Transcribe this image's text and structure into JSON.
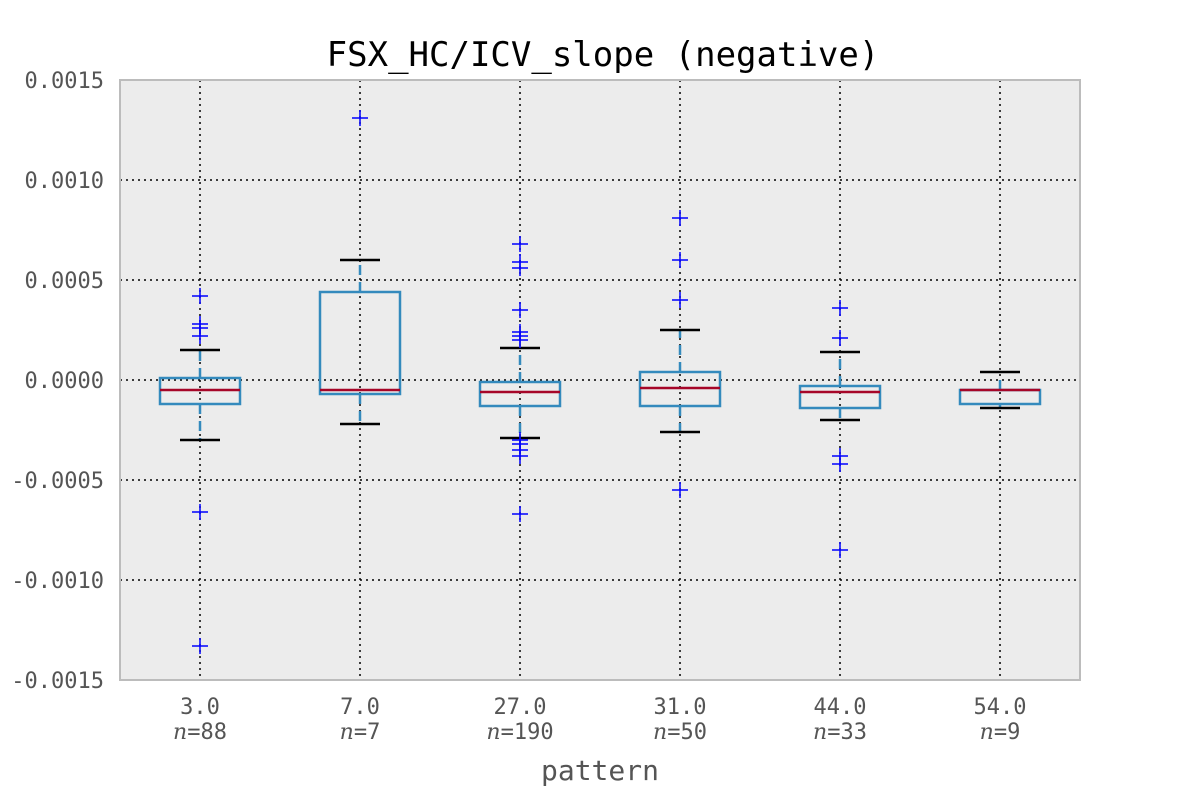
{
  "chart_data": {
    "type": "box",
    "title": "FSX_HC/ICV_slope (negative)",
    "xlabel": "pattern",
    "ylabel": "",
    "ylim": [
      -0.0015,
      0.0015
    ],
    "yticks": [
      -0.0015,
      -0.001,
      -0.0005,
      0.0,
      0.0005,
      0.001,
      0.0015
    ],
    "ytick_labels": [
      "-0.0015",
      "-0.0010",
      "-0.0005",
      "0.0000",
      "0.0005",
      "0.0010",
      "0.0015"
    ],
    "grid": true,
    "colors": {
      "background": "#ececec",
      "frame": "#bcbcbc",
      "box": "#348abd",
      "median": "#a60628",
      "cap": "#000000",
      "flier": "#0000ff",
      "grid": "#000000"
    },
    "boxes": [
      {
        "category": "3.0",
        "n_label": "=88",
        "whisker_low": -0.0003,
        "q1": -0.00012,
        "median": -5e-05,
        "q3": 1e-05,
        "whisker_high": 0.00015,
        "fliers": [
          0.00042,
          0.00028,
          0.00026,
          0.00022,
          -0.00066,
          -0.00133
        ]
      },
      {
        "category": "7.0",
        "n_label": "=7",
        "whisker_low": -0.00022,
        "q1": -7e-05,
        "median": -5e-05,
        "q3": 0.00044,
        "whisker_high": 0.0006,
        "fliers": [
          0.00131
        ]
      },
      {
        "category": "27.0",
        "n_label": "=190",
        "whisker_low": -0.00029,
        "q1": -0.00013,
        "median": -6e-05,
        "q3": -1e-05,
        "whisker_high": 0.00016,
        "fliers": [
          0.00068,
          0.00059,
          0.00056,
          0.00035,
          0.00024,
          0.00022,
          0.0002,
          -0.0003,
          -0.00032,
          -0.00035,
          -0.00038,
          -0.00067
        ]
      },
      {
        "category": "31.0",
        "n_label": "=50",
        "whisker_low": -0.00026,
        "q1": -0.00013,
        "median": -4e-05,
        "q3": 4e-05,
        "whisker_high": 0.00025,
        "fliers": [
          0.00081,
          0.0006,
          0.0004,
          -0.00055
        ]
      },
      {
        "category": "44.0",
        "n_label": "=33",
        "whisker_low": -0.0002,
        "q1": -0.00014,
        "median": -6e-05,
        "q3": -3e-05,
        "whisker_high": 0.00014,
        "fliers": [
          0.00036,
          0.00021,
          -0.00038,
          -0.00042,
          -0.00085
        ]
      },
      {
        "category": "54.0",
        "n_label": "=9",
        "whisker_low": -0.00014,
        "q1": -0.00012,
        "median": -5e-05,
        "q3": -5e-05,
        "whisker_high": 4e-05,
        "fliers": []
      }
    ]
  }
}
